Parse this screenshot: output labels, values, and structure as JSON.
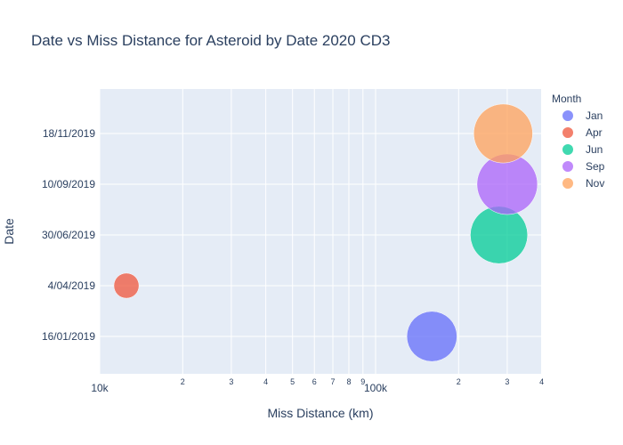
{
  "chart_data": {
    "type": "scatter",
    "title": "Date vs Miss Distance for Asteroid by Date 2020 CD3",
    "xlabel": "Miss Distance (km)",
    "ylabel": "Date",
    "x_scale": "log",
    "xlim": [
      10000,
      400000
    ],
    "x_major_ticks": [
      {
        "value": 10000,
        "label": "10k"
      },
      {
        "value": 100000,
        "label": "100k"
      }
    ],
    "x_minor_ticks": [
      {
        "value": 20000,
        "label": "2"
      },
      {
        "value": 30000,
        "label": "3"
      },
      {
        "value": 40000,
        "label": "4"
      },
      {
        "value": 50000,
        "label": "5"
      },
      {
        "value": 60000,
        "label": "6"
      },
      {
        "value": 70000,
        "label": "7"
      },
      {
        "value": 80000,
        "label": "8"
      },
      {
        "value": 90000,
        "label": "9"
      },
      {
        "value": 200000,
        "label": "2"
      },
      {
        "value": 300000,
        "label": "3"
      },
      {
        "value": 400000,
        "label": "4"
      }
    ],
    "y_categories": [
      "16/01/2019",
      "4/04/2019",
      "30/06/2019",
      "10/09/2019",
      "18/11/2019"
    ],
    "legend": {
      "title": "Month",
      "placement": "right"
    },
    "grid": true,
    "series": [
      {
        "name": "Jan",
        "color": "#636efa",
        "points": [
          {
            "x": 160000,
            "y": "16/01/2019",
            "size": 0.4
          }
        ]
      },
      {
        "name": "Apr",
        "color": "#EF553B",
        "points": [
          {
            "x": 12500,
            "y": "4/04/2019",
            "size": 0.1
          }
        ]
      },
      {
        "name": "Jun",
        "color": "#00cc96",
        "points": [
          {
            "x": 280000,
            "y": "30/06/2019",
            "size": 0.52
          }
        ]
      },
      {
        "name": "Sep",
        "color": "#ab63fa",
        "points": [
          {
            "x": 300000,
            "y": "10/09/2019",
            "size": 0.58
          }
        ]
      },
      {
        "name": "Nov",
        "color": "#FFA15A",
        "points": [
          {
            "x": 290000,
            "y": "18/11/2019",
            "size": 0.55
          }
        ]
      }
    ]
  }
}
